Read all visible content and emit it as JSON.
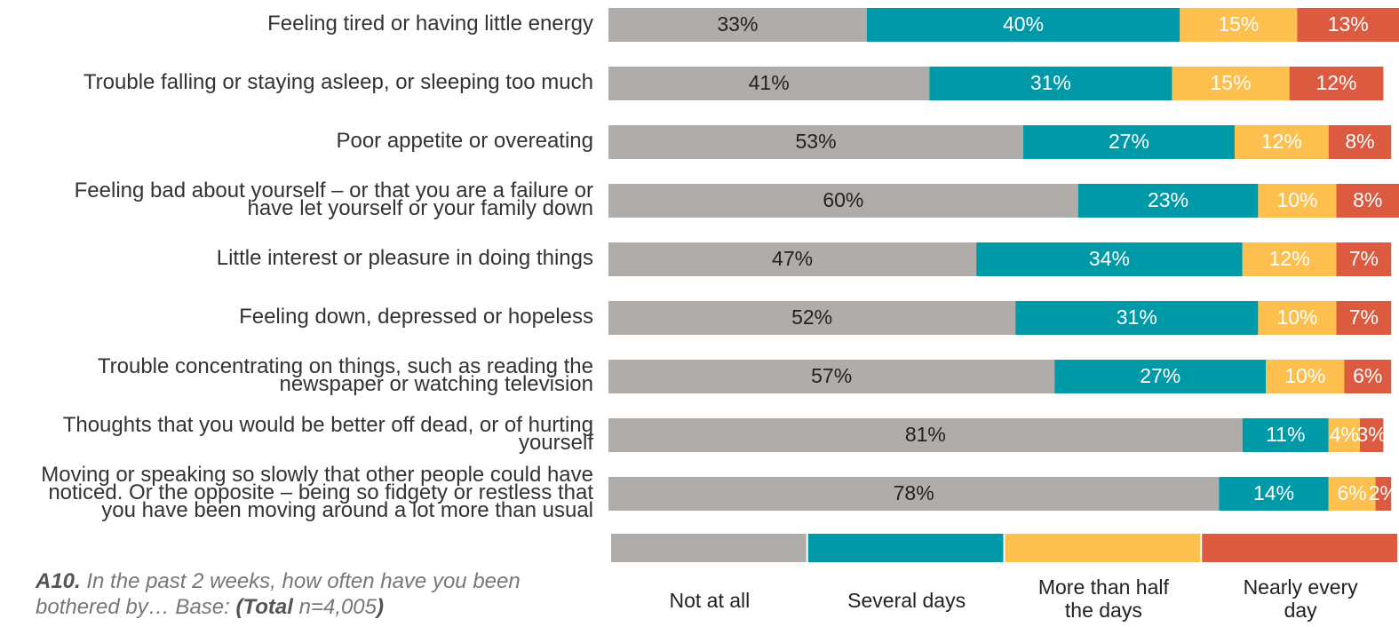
{
  "chart_data": {
    "type": "stacked-bar",
    "categories": [
      [
        "Feeling tired or having little energy"
      ],
      [
        "Trouble falling or staying asleep, or sleeping too much"
      ],
      [
        "Poor appetite or overeating"
      ],
      [
        "Feeling bad about yourself – or that you are a failure or",
        "have let yourself or your family down"
      ],
      [
        "Little interest or pleasure in doing things"
      ],
      [
        "Feeling down, depressed or hopeless"
      ],
      [
        "Trouble concentrating on things, such as reading the",
        "newspaper or watching television"
      ],
      [
        "Thoughts that you would be better off dead, or of hurting",
        "yourself"
      ],
      [
        "Moving or speaking so slowly that other people could have",
        "noticed. Or the opposite – being so fidgety or restless that",
        "you have been moving around a lot more than usual"
      ]
    ],
    "series": [
      {
        "name": "Not at all",
        "color": "#b0acaa",
        "label_color": "#222",
        "values": [
          33,
          41,
          53,
          60,
          47,
          52,
          57,
          81,
          78
        ],
        "value_labels": [
          "33%",
          "41%",
          "53%",
          "60%",
          "47%",
          "52%",
          "57%",
          "81%",
          "78%"
        ]
      },
      {
        "name": "Several days",
        "color": "#0099a8",
        "label_color": "#ffffff",
        "values": [
          40,
          31,
          27,
          23,
          34,
          31,
          27,
          11,
          14
        ],
        "value_labels": [
          "40%",
          "31%",
          "27%",
          "23%",
          "34%",
          "31%",
          "27%",
          "11%",
          "14%"
        ]
      },
      {
        "name": "More than half the days",
        "color": "#fdc04e",
        "label_color": "#ffffff",
        "values": [
          15,
          15,
          12,
          10,
          12,
          10,
          10,
          4,
          6
        ],
        "value_labels": [
          "15%",
          "15%",
          "12%",
          "10%",
          "12%",
          "10%",
          "10%",
          "4%",
          "6%"
        ]
      },
      {
        "name": "Nearly every day",
        "color": "#dc5b40",
        "label_color": "#ffffff",
        "values": [
          13,
          12,
          8,
          8,
          7,
          7,
          6,
          3,
          2
        ],
        "value_labels": [
          "13%",
          "12%",
          "8%",
          "8%",
          "7%",
          "7%",
          "6%",
          "3%",
          "2%"
        ]
      }
    ],
    "xlim": [
      0,
      101
    ],
    "footnote": [
      {
        "text": "A10.",
        "bold": true
      },
      {
        "text": " In the past 2 weeks, how often have you been bothered by… Base: ",
        "bold": false
      },
      {
        "text": "(Total",
        "bold": true
      },
      {
        "text": " n=4,005",
        "bold": false
      },
      {
        "text": ")",
        "bold": true
      }
    ]
  }
}
